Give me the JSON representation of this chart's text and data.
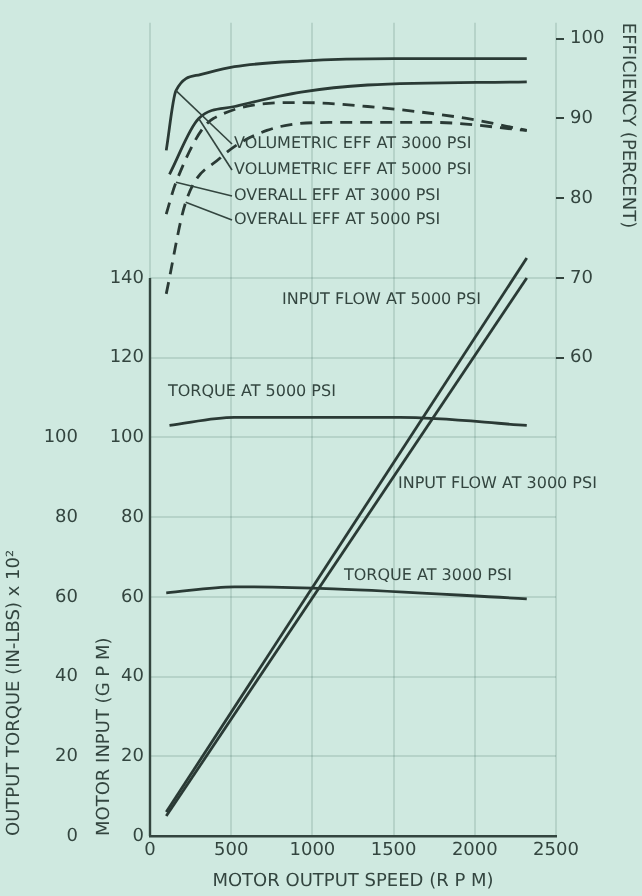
{
  "chart_data": {
    "type": "line",
    "xlabel": "MOTOR OUTPUT SPEED (R P M)",
    "ylabel": "MOTOR INPUT (G P M)",
    "y2label": "EFFICIENCY (PERCENT)",
    "y3label": "OUTPUT TORQUE (IN-LBS) x 10²",
    "xlim": [
      0,
      2500
    ],
    "xticks": [
      0,
      500,
      1000,
      1500,
      2000,
      2500
    ],
    "ylim": [
      0,
      204
    ],
    "yticks": [
      0,
      20,
      40,
      60,
      80,
      100,
      120,
      140
    ],
    "y2lim": [
      0,
      102
    ],
    "y2ticks": [
      60,
      70,
      80,
      90,
      100
    ],
    "y3lim": [
      0,
      204
    ],
    "y3ticks": [
      0,
      20,
      40,
      60,
      80,
      100
    ],
    "grid": true,
    "legend": false,
    "marker": "none",
    "series": [
      {
        "name": "VOLUMETRIC EFF AT 3000 PSI",
        "color": "#2a3a35",
        "axis": "y2",
        "line_style": "solid",
        "x": [
          100,
          160,
          310,
          520,
          930,
          1500,
          2320
        ],
        "values": [
          86,
          93.5,
          95.5,
          96.5,
          97.2,
          97.5,
          97.5
        ]
      },
      {
        "name": "VOLUMETRIC EFF AT 5000 PSI",
        "color": "#2a3a35",
        "axis": "y2",
        "line_style": "solid",
        "x": [
          120,
          300,
          520,
          930,
          1340,
          2320
        ],
        "values": [
          83,
          90,
          91.5,
          93.3,
          94.2,
          94.6
        ]
      },
      {
        "name": "OVERALL EFF AT 3000 PSI",
        "color": "#2a3a35",
        "axis": "y2",
        "line_style": "dashed",
        "x": [
          100,
          160,
          390,
          930,
          1340,
          1950,
          2320
        ],
        "values": [
          78,
          82,
          90,
          92,
          91.5,
          90,
          88.5
        ]
      },
      {
        "name": "OVERALL EFF AT 5000 PSI",
        "color": "#2a3a35",
        "axis": "y2",
        "line_style": "dashed",
        "x": [
          100,
          220,
          430,
          720,
          1130,
          1750,
          2320
        ],
        "values": [
          68,
          79.5,
          85,
          88.5,
          89.5,
          89.5,
          88.5
        ]
      },
      {
        "name": "INPUT FLOW AT 5000 PSI",
        "color": "#2a3a35",
        "line_style": "solid",
        "x": [
          100,
          2320
        ],
        "values": [
          6,
          145
        ]
      },
      {
        "name": "INPUT FLOW AT 3000 PSI",
        "color": "#2a3a35",
        "line_style": "solid",
        "x": [
          100,
          2320
        ],
        "values": [
          5,
          140
        ]
      },
      {
        "name": "TORQUE AT 5000 PSI",
        "color": "#2a3a35",
        "axis": "y3",
        "line_style": "solid",
        "x": [
          120,
          520,
          1540,
          2320
        ],
        "values": [
          103,
          105,
          105,
          103
        ]
      },
      {
        "name": "TORQUE AT 3000 PSI",
        "color": "#2a3a35",
        "axis": "y3",
        "line_style": "solid",
        "x": [
          100,
          520,
          1130,
          2320
        ],
        "values": [
          61,
          62.5,
          62,
          59.5
        ]
      }
    ]
  }
}
